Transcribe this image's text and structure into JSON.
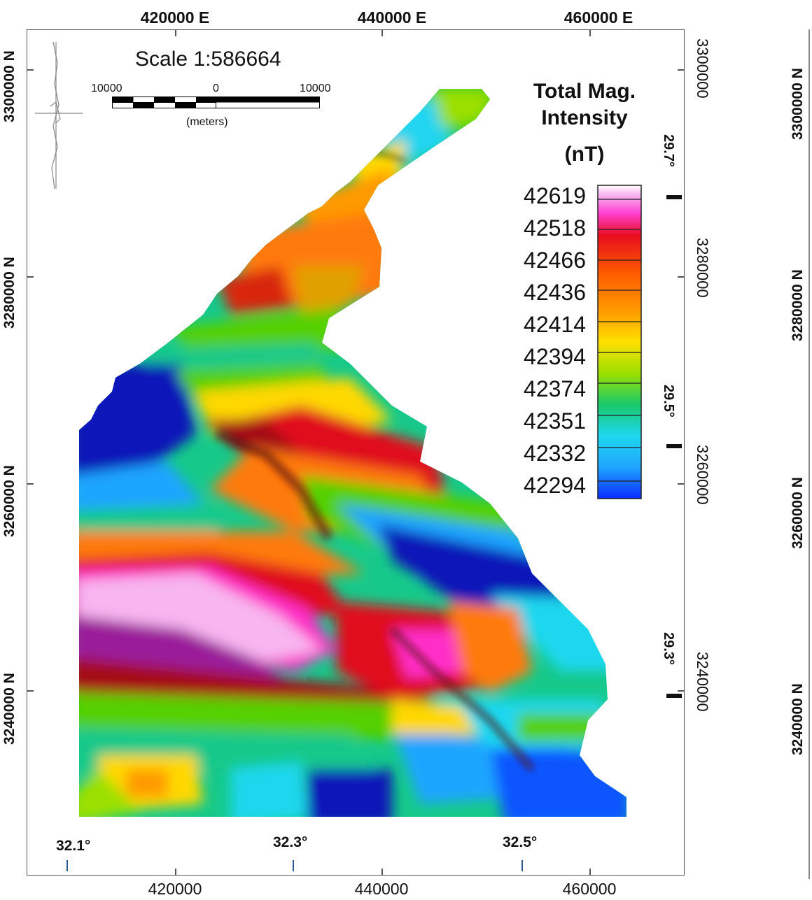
{
  "top_labels": [
    "420000 E",
    "440000 E",
    "460000 E"
  ],
  "bottom_labels": [
    "420000",
    "440000",
    "460000"
  ],
  "left_labels": [
    "3300000 N",
    "3280000 N",
    "3260000 N",
    "3240000 N"
  ],
  "right_labels": [
    "3300000",
    "3280000",
    "3260000",
    "3240000"
  ],
  "far_right_labels": [
    "3300000 N",
    "3280000 N",
    "3260000 N",
    "3240000 N"
  ],
  "lat_labels": [
    "29.7°",
    "29.5°",
    "29.3°"
  ],
  "lon_labels": [
    "32.1°",
    "32.3°",
    "32.5°"
  ],
  "scale": {
    "title": "Scale 1:586664",
    "left": "10000",
    "mid": "0",
    "right": "10000",
    "unit": "(meters)"
  },
  "legend": {
    "title_line1": "Total Mag.",
    "title_line2": "Intensity",
    "title_line3": "(nT)",
    "values": [
      "42619",
      "42518",
      "42466",
      "42436",
      "42414",
      "42394",
      "42374",
      "42351",
      "42332",
      "42294"
    ],
    "colors": [
      "#ffffff",
      "#f7b6f0",
      "#ff3fd0",
      "#e60d1e",
      "#ff5a00",
      "#ff9a00",
      "#ffe000",
      "#9be000",
      "#19c96b",
      "#1fd7ee",
      "#1fa5ff",
      "#0a2bff"
    ]
  },
  "map": {
    "colors": {
      "pink_light": "#f7b6f0",
      "magenta": "#ff2fc8",
      "purple": "#9a1e9a",
      "red": "#e0101a",
      "darkred": "#a50a14",
      "orange": "#ff7a10",
      "yellow": "#ffd800",
      "green": "#55d000",
      "teal": "#16c98a",
      "cyan": "#23d5f0",
      "blue": "#0d55ff",
      "navy": "#0816b8"
    }
  }
}
